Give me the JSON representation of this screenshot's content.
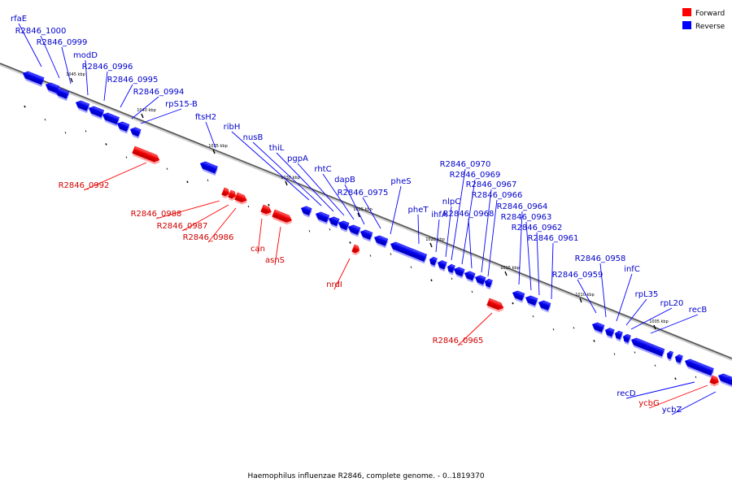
{
  "legend": {
    "forward_label": "Forward",
    "reverse_label": "Reverse",
    "forward_color": "#ff0000",
    "reverse_color": "#0000ff"
  },
  "caption": "Haemophilus influenzae R2846, complete genome. - 0..1819370",
  "axis": {
    "ticks": [
      {
        "label": "1045 kbp"
      },
      {
        "label": "1040 kbp"
      },
      {
        "label": "1035 kbp"
      },
      {
        "label": "1030 kbp"
      },
      {
        "label": "1025 kbp"
      },
      {
        "label": "1020 kbp"
      },
      {
        "label": "1015 kbp"
      },
      {
        "label": "1010 kbp"
      },
      {
        "label": "1005 kbp"
      }
    ]
  },
  "genes": [
    {
      "name": "rfaE",
      "strand": "reverse"
    },
    {
      "name": "R2846_1000",
      "strand": "reverse"
    },
    {
      "name": "R2846_0999",
      "strand": "reverse"
    },
    {
      "name": "modD",
      "strand": "reverse"
    },
    {
      "name": "R2846_0996",
      "strand": "reverse"
    },
    {
      "name": "R2846_0995",
      "strand": "reverse"
    },
    {
      "name": "R2846_0994",
      "strand": "reverse"
    },
    {
      "name": "rpS15-B",
      "strand": "reverse"
    },
    {
      "name": "ftsH2",
      "strand": "reverse"
    },
    {
      "name": "ribH",
      "strand": "reverse"
    },
    {
      "name": "nusB",
      "strand": "reverse"
    },
    {
      "name": "thiL",
      "strand": "reverse"
    },
    {
      "name": "pgpA",
      "strand": "reverse"
    },
    {
      "name": "rhtC",
      "strand": "reverse"
    },
    {
      "name": "dapB",
      "strand": "reverse"
    },
    {
      "name": "R2846_0975",
      "strand": "reverse"
    },
    {
      "name": "pheS",
      "strand": "reverse"
    },
    {
      "name": "pheT",
      "strand": "reverse"
    },
    {
      "name": "ihfA",
      "strand": "reverse"
    },
    {
      "name": "nlpC",
      "strand": "reverse"
    },
    {
      "name": "R2846_0970",
      "strand": "reverse"
    },
    {
      "name": "R2846_0969",
      "strand": "reverse"
    },
    {
      "name": "R2846_0968",
      "strand": "reverse"
    },
    {
      "name": "R2846_0967",
      "strand": "reverse"
    },
    {
      "name": "R2846_0966",
      "strand": "reverse"
    },
    {
      "name": "R2846_0964",
      "strand": "reverse"
    },
    {
      "name": "R2846_0963",
      "strand": "reverse"
    },
    {
      "name": "R2846_0962",
      "strand": "reverse"
    },
    {
      "name": "R2846_0961",
      "strand": "reverse"
    },
    {
      "name": "R2846_0959",
      "strand": "reverse"
    },
    {
      "name": "R2846_0958",
      "strand": "reverse"
    },
    {
      "name": "infC",
      "strand": "reverse"
    },
    {
      "name": "rpL35",
      "strand": "reverse"
    },
    {
      "name": "rpL20",
      "strand": "reverse"
    },
    {
      "name": "recB",
      "strand": "reverse"
    },
    {
      "name": "recD",
      "strand": "reverse"
    },
    {
      "name": "ycbZ",
      "strand": "reverse"
    },
    {
      "name": "R2846_0992",
      "strand": "forward"
    },
    {
      "name": "R2846_0988",
      "strand": "forward"
    },
    {
      "name": "R2846_0987",
      "strand": "forward"
    },
    {
      "name": "R2846_0986",
      "strand": "forward"
    },
    {
      "name": "can",
      "strand": "forward"
    },
    {
      "name": "asnS",
      "strand": "forward"
    },
    {
      "name": "nrdI",
      "strand": "forward"
    },
    {
      "name": "R2846_0965",
      "strand": "forward"
    },
    {
      "name": "ycbG",
      "strand": "forward"
    }
  ]
}
